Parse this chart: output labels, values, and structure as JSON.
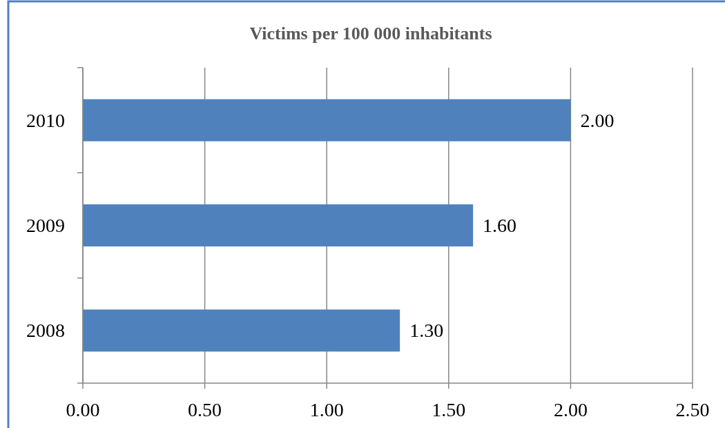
{
  "chart_data": {
    "type": "bar",
    "orientation": "horizontal",
    "title": "Victims per 100 000 inhabitants",
    "categories": [
      "2010",
      "2009",
      "2008"
    ],
    "values": [
      2.0,
      1.6,
      1.3
    ],
    "value_labels": [
      "2.00",
      "1.60",
      "1.30"
    ],
    "color": "#4f81bd",
    "xlim": [
      0,
      2.5
    ],
    "xticks": [
      {
        "value": 0,
        "label": "0.00"
      },
      {
        "value": 0.5,
        "label": "0.50"
      },
      {
        "value": 1,
        "label": "1.00"
      },
      {
        "value": 1.5,
        "label": "1.50"
      },
      {
        "value": 2,
        "label": "2.00"
      },
      {
        "value": 2.5,
        "label": "2.50"
      }
    ],
    "grid": "x"
  }
}
